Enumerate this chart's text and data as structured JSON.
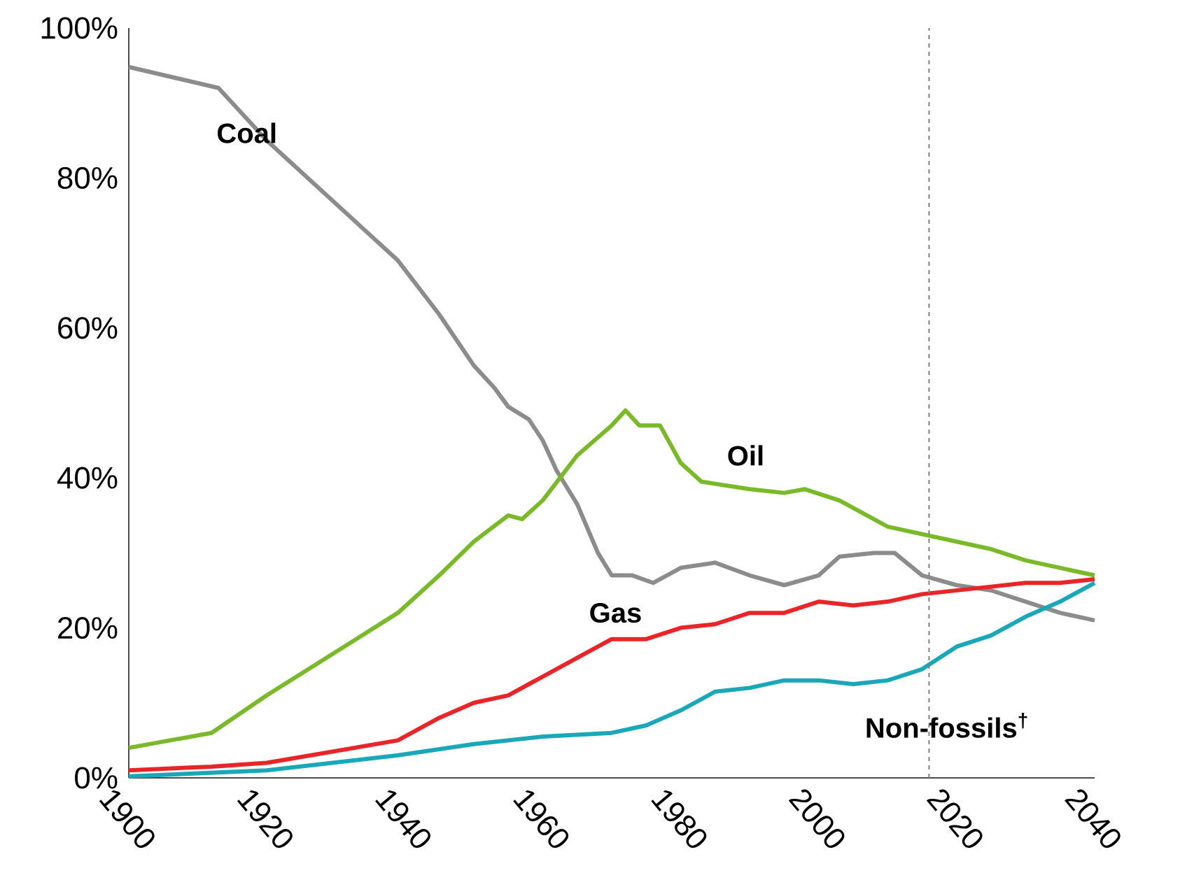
{
  "chart_data": {
    "type": "line",
    "xlim": [
      1900,
      2040
    ],
    "ylim": [
      0,
      100
    ],
    "xticks": [
      1900,
      1920,
      1940,
      1960,
      1980,
      2000,
      2020,
      2040
    ],
    "yticks": [
      {
        "value": 0,
        "label": "0%"
      },
      {
        "value": 20,
        "label": "20%"
      },
      {
        "value": 40,
        "label": "40%"
      },
      {
        "value": 60,
        "label": "60%"
      },
      {
        "value": 80,
        "label": "80%"
      },
      {
        "value": 100,
        "label": "100%"
      }
    ],
    "grid": false,
    "legend": false,
    "ref_lines": [
      {
        "axis": "x",
        "value": 2016,
        "color": "#7f7f7f",
        "line_style": "dashed"
      }
    ],
    "series": [
      {
        "name": "Coal",
        "color": "#8c8c8c",
        "x": [
          1900,
          1913,
          1920,
          1939,
          1945,
          1950,
          1953,
          1955,
          1958,
          1960,
          1962,
          1965,
          1968,
          1970,
          1973,
          1976,
          1980,
          1985,
          1990,
          1995,
          2000,
          2003,
          2008,
          2011,
          2015,
          2020,
          2025,
          2030,
          2035,
          2040
        ],
        "values": [
          94.8,
          92,
          85,
          69,
          61.8,
          55,
          52,
          49.5,
          47.8,
          45,
          41,
          36.5,
          30,
          27,
          27,
          26,
          28,
          28.7,
          27,
          25.7,
          27,
          29.5,
          30,
          30,
          27,
          25.7,
          25,
          23.5,
          22,
          21
        ]
      },
      {
        "name": "Oil",
        "color": "#7ab929",
        "x": [
          1900,
          1912,
          1920,
          1939,
          1945,
          1950,
          1955,
          1957,
          1960,
          1965,
          1970,
          1972,
          1974,
          1977,
          1980,
          1983,
          1990,
          1995,
          1998,
          2003,
          2010,
          2015,
          2020,
          2025,
          2030,
          2035,
          2040
        ],
        "values": [
          4,
          6,
          11,
          22,
          27,
          31.5,
          35,
          34.5,
          37,
          43,
          47,
          49,
          47,
          47,
          42,
          39.5,
          38.5,
          38,
          38.5,
          37,
          33.5,
          32.5,
          31.5,
          30.5,
          29,
          28,
          27
        ]
      },
      {
        "name": "Gas",
        "color": "#e8262a",
        "x": [
          1900,
          1912,
          1920,
          1939,
          1945,
          1950,
          1955,
          1960,
          1965,
          1970,
          1975,
          1980,
          1985,
          1990,
          1995,
          2000,
          2005,
          2010,
          2015,
          2020,
          2025,
          2030,
          2035,
          2040
        ],
        "values": [
          1,
          1.5,
          2,
          5,
          8,
          10,
          11,
          13.5,
          16,
          18.5,
          18.5,
          20,
          20.5,
          22,
          22,
          23.5,
          23,
          23.5,
          24.5,
          25,
          25.5,
          26,
          26,
          26.5
        ]
      },
      {
        "name": "Non-fossils$^{†}$",
        "color": "#1aa8b8",
        "x": [
          1900,
          1920,
          1939,
          1950,
          1960,
          1970,
          1975,
          1980,
          1985,
          1990,
          1995,
          2000,
          2005,
          2010,
          2015,
          2020,
          2025,
          2030,
          2035,
          2040
        ],
        "values": [
          0.2,
          1,
          3,
          4.5,
          5.5,
          6,
          7,
          9,
          11.5,
          12,
          13,
          13,
          12.5,
          13,
          14.5,
          17.5,
          19,
          21.5,
          23.5,
          26
        ]
      }
    ]
  }
}
